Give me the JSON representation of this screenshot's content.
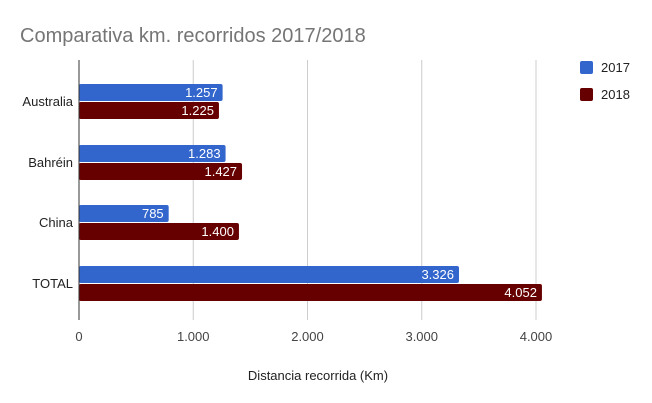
{
  "chart_data": {
    "type": "bar",
    "orientation": "horizontal",
    "title": "Comparativa km. recorridos 2017/2018",
    "xlabel": "Distancia recorrida (Km)",
    "ylabel": "",
    "categories": [
      "Australia",
      "Bahréin",
      "China",
      "TOTAL"
    ],
    "series": [
      {
        "name": "2017",
        "color": "#3366cc",
        "values": [
          1257,
          1283,
          785,
          3326
        ],
        "labels": [
          "1.257",
          "1.283",
          "785",
          "3.326"
        ]
      },
      {
        "name": "2018",
        "color": "#660000",
        "values": [
          1225,
          1427,
          1400,
          4052
        ],
        "labels": [
          "1.225",
          "1.427",
          "1.400",
          "4.052"
        ]
      }
    ],
    "xlim": [
      0,
      4500
    ],
    "ticks": [
      0,
      1000,
      2000,
      3000,
      4000
    ],
    "tick_labels": [
      "0",
      "1.000",
      "2.000",
      "3.000",
      "4.000"
    ],
    "grid": true,
    "legend_position": "right"
  }
}
